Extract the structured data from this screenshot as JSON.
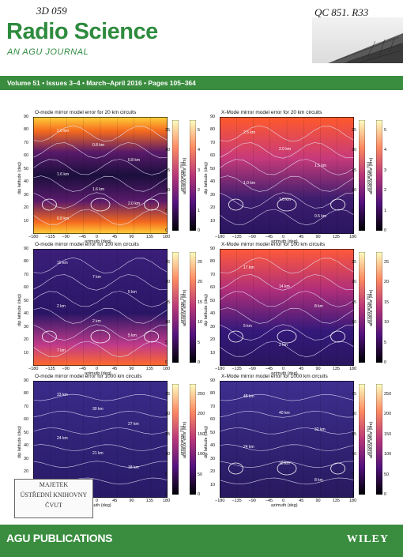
{
  "handwriting": {
    "left": "3D 059",
    "right": "QC 851. R33"
  },
  "journal": {
    "title": "Radio Science",
    "subtitle": "AN AGU JOURNAL"
  },
  "volume_line": "Volume 51 • Issues 3–4 • March–April 2016 • Pages 105–364",
  "axes": {
    "xlabel": "azimuth (deg)",
    "ylabel": "dip latitude (deg)",
    "xticks": [
      "−180",
      "−135",
      "−90",
      "−45",
      "0",
      "45",
      "90",
      "135",
      "180"
    ],
    "yticks": [
      "10",
      "20",
      "30",
      "40",
      "50",
      "60",
      "70",
      "80",
      "90"
    ],
    "cbar_left_label": "error/range (%)",
    "cbar_right_label": "absolute error (km)"
  },
  "panels": [
    {
      "title": "O-mode mirror model error for 20 km circuits",
      "scheme": "omode20",
      "cbar_left": [
        "0",
        "5",
        "10",
        "15",
        "20",
        "25"
      ],
      "cbar_right": [
        "0",
        "1",
        "2",
        "3",
        "4",
        "5"
      ],
      "contours": [
        "2.0 km",
        "0.8 km",
        "0.8 km",
        "1.6 km",
        "1.6 km",
        "2.0 km",
        "0.8 km"
      ]
    },
    {
      "title": "X-Mode mirror model error for 20 km circuits",
      "scheme": "xmode20",
      "cbar_left": [
        "0",
        "5",
        "10",
        "15",
        "20",
        "25"
      ],
      "cbar_right": [
        "0",
        "1",
        "2",
        "3",
        "4",
        "5"
      ],
      "contours": [
        "2.5 km",
        "2.0 km",
        "1.5 km",
        "1.0 km",
        "1.0 km",
        "0.5 km"
      ]
    },
    {
      "title": "O-mode mirror model error for 100 km circuits",
      "scheme": "omode100",
      "cbar_left": [
        "0",
        "5",
        "10",
        "15",
        "20",
        "25"
      ],
      "cbar_right": [
        "0",
        "5",
        "10",
        "15",
        "20",
        "25"
      ],
      "contours": [
        "10 km",
        "7 km",
        "5 km",
        "2 km",
        "2 km",
        "5 km",
        "7 km"
      ]
    },
    {
      "title": "X-Mode mirror model error for 100 km circuits",
      "scheme": "xmode100",
      "cbar_left": [
        "0",
        "5",
        "10",
        "15",
        "20",
        "25"
      ],
      "cbar_right": [
        "0",
        "5",
        "10",
        "15",
        "20",
        "25"
      ],
      "contours": [
        "17 km",
        "14 km",
        "8 km",
        "5 km",
        "2 km"
      ]
    },
    {
      "title": "O-mode mirror model error for 1000 km circuits",
      "scheme": "omode1000",
      "cbar_left": [
        "0",
        "5",
        "10",
        "15",
        "20",
        "25"
      ],
      "cbar_right": [
        "0",
        "50",
        "100",
        "150",
        "200",
        "250"
      ],
      "contours": [
        "33 km",
        "30 km",
        "27 km",
        "24 km",
        "21 km",
        "18 km",
        "15 km"
      ]
    },
    {
      "title": "X-Mode mirror model error for 1000 km circuits",
      "scheme": "xmode1000",
      "cbar_left": [
        "0",
        "5",
        "10",
        "15",
        "20",
        "25"
      ],
      "cbar_right": [
        "0",
        "50",
        "100",
        "150",
        "200",
        "250"
      ],
      "contours": [
        "48 km",
        "40 km",
        "32 km",
        "24 km",
        "16 km",
        "8 km"
      ]
    }
  ],
  "stamp": {
    "line1": "MAJETEK",
    "line2": "ÚSTŘEDNÍ KNIHOVNY",
    "line3": "ČVUT"
  },
  "footer": {
    "publisher_logo": "AGU PUBLICATIONS",
    "wiley": "WILEY"
  }
}
